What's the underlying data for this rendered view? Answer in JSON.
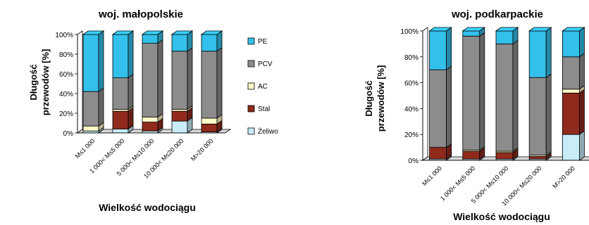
{
  "chart_data": [
    {
      "type": "bar",
      "stacked": true,
      "style": "3d",
      "title": "woj. małopolskie",
      "xlabel": "Wielkość wodociągu",
      "ylabel": "Długość przewodów [%]",
      "ylabel_lines": [
        "Długość",
        "przewodów [%]"
      ],
      "ylim": [
        0,
        100
      ],
      "yticks": [
        "0%",
        "20%",
        "40%",
        "60%",
        "80%",
        "100%"
      ],
      "categories": [
        "M≤1 000",
        "1 000< M≤5 000",
        "5 000< M≤10 000",
        "10 000< M≤20 000",
        "M>20 000"
      ],
      "series": [
        {
          "name": "Żeliwo",
          "color": "#c8ecf8",
          "values": [
            2,
            4,
            2,
            12,
            1
          ]
        },
        {
          "name": "Stal",
          "color": "#8f2a1d",
          "values": [
            0,
            18,
            9,
            10,
            8
          ]
        },
        {
          "name": "AC",
          "color": "#fff8c8",
          "values": [
            5,
            2,
            5,
            2,
            6
          ]
        },
        {
          "name": "PCV",
          "color": "#8c8c8c",
          "values": [
            35,
            32,
            75,
            59,
            68
          ]
        },
        {
          "name": "PE",
          "color": "#33c0ea",
          "values": [
            58,
            44,
            9,
            17,
            17
          ]
        }
      ],
      "legend": {
        "position": "right",
        "order": [
          "PE",
          "PCV",
          "AC",
          "Stal",
          "Żeliwo"
        ]
      },
      "grid": false
    },
    {
      "type": "bar",
      "stacked": true,
      "style": "3d",
      "title": "woj. podkarpackie",
      "xlabel": "Wielkość wodociągu",
      "ylabel": "Długość przewodów [%]",
      "ylabel_lines": [
        "Długość",
        "przewodów [%]"
      ],
      "ylim": [
        0,
        100
      ],
      "yticks": [
        "0%",
        "20%",
        "40%",
        "60%",
        "80%",
        "100%"
      ],
      "categories": [
        "M≤1 000",
        "1 000< M≤5 000",
        "5 000< M≤10 000",
        "10 000< M≤20 000",
        "M>20 000"
      ],
      "series": [
        {
          "name": "Żeliwo",
          "color": "#c8ecf8",
          "values": [
            1,
            1,
            1,
            1,
            20
          ]
        },
        {
          "name": "Stal",
          "color": "#8f2a1d",
          "values": [
            9,
            6,
            5,
            2,
            32
          ]
        },
        {
          "name": "AC",
          "color": "#fff8c8",
          "values": [
            0,
            1,
            1,
            1,
            3
          ]
        },
        {
          "name": "PCV",
          "color": "#8c8c8c",
          "values": [
            60,
            88,
            83,
            60,
            25
          ]
        },
        {
          "name": "PE",
          "color": "#33c0ea",
          "values": [
            30,
            4,
            10,
            36,
            20
          ]
        }
      ],
      "legend": {
        "position": "none"
      },
      "grid": false
    }
  ]
}
